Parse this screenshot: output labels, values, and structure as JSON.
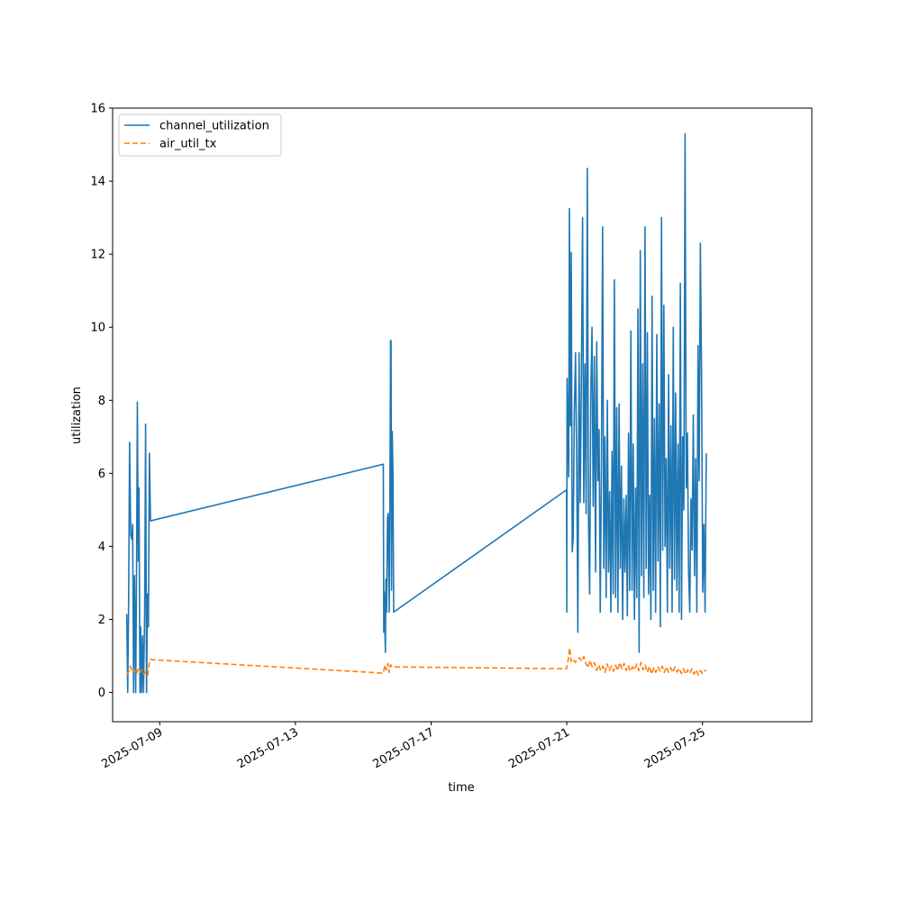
{
  "chart_data": {
    "type": "line",
    "title": "",
    "xlabel": "time",
    "ylabel": "utilization",
    "xlim": [
      "2025-07-07T14:40",
      "2025-07-28T05:20"
    ],
    "ylim": [
      -0.8,
      16
    ],
    "x_ticks": [
      "2025-07-09",
      "2025-07-13",
      "2025-07-17",
      "2025-07-21",
      "2025-07-25"
    ],
    "y_ticks": [
      0,
      2,
      4,
      6,
      8,
      10,
      12,
      14,
      16
    ],
    "grid": false,
    "legend": {
      "position": "upper-left"
    },
    "series": [
      {
        "name": "channel_utilization",
        "color": "#1f77b4",
        "dash": "solid",
        "points": [
          [
            "2025-07-08T00:40",
            2.15
          ],
          [
            "2025-07-08T01:20",
            0.0
          ],
          [
            "2025-07-08T02:00",
            2.5
          ],
          [
            "2025-07-08T02:40",
            6.85
          ],
          [
            "2025-07-08T03:30",
            4.3
          ],
          [
            "2025-07-08T04:10",
            4.2
          ],
          [
            "2025-07-08T04:50",
            4.6
          ],
          [
            "2025-07-08T05:30",
            0.0
          ],
          [
            "2025-07-08T06:10",
            3.2
          ],
          [
            "2025-07-08T07:00",
            0.0
          ],
          [
            "2025-07-08T07:40",
            3.8
          ],
          [
            "2025-07-08T08:10",
            7.95
          ],
          [
            "2025-07-08T08:50",
            3.6
          ],
          [
            "2025-07-08T09:20",
            5.6
          ],
          [
            "2025-07-08T10:00",
            0.0
          ],
          [
            "2025-07-08T10:30",
            1.8
          ],
          [
            "2025-07-08T11:10",
            0.0
          ],
          [
            "2025-07-08T11:50",
            1.55
          ],
          [
            "2025-07-08T12:30",
            0.0
          ],
          [
            "2025-07-08T13:20",
            2.2
          ],
          [
            "2025-07-08T14:00",
            7.35
          ],
          [
            "2025-07-08T14:40",
            0.0
          ],
          [
            "2025-07-08T15:20",
            2.7
          ],
          [
            "2025-07-08T16:00",
            1.8
          ],
          [
            "2025-07-08T16:40",
            6.55
          ],
          [
            "2025-07-08T17:30",
            4.7
          ],
          [
            "2025-07-15T14:10",
            6.25
          ],
          [
            "2025-07-15T14:30",
            1.65
          ],
          [
            "2025-07-15T14:50",
            2.75
          ],
          [
            "2025-07-15T15:20",
            1.65
          ],
          [
            "2025-07-15T15:40",
            1.1
          ],
          [
            "2025-07-15T16:00",
            3.1
          ],
          [
            "2025-07-15T16:30",
            2.2
          ],
          [
            "2025-07-15T17:10",
            4.8
          ],
          [
            "2025-07-15T17:40",
            4.9
          ],
          [
            "2025-07-15T18:20",
            2.2
          ],
          [
            "2025-07-15T18:50",
            5.2
          ],
          [
            "2025-07-15T19:20",
            9.65
          ],
          [
            "2025-07-15T19:40",
            9.6
          ],
          [
            "2025-07-15T20:00",
            2.8
          ],
          [
            "2025-07-15T20:30",
            7.15
          ],
          [
            "2025-07-15T21:00",
            6.0
          ],
          [
            "2025-07-15T21:30",
            2.2
          ],
          [
            "2025-07-20T23:50",
            5.55
          ],
          [
            "2025-07-21T00:00",
            2.2
          ],
          [
            "2025-07-21T00:10",
            8.6
          ],
          [
            "2025-07-21T01:20",
            5.9
          ],
          [
            "2025-07-21T01:50",
            13.25
          ],
          [
            "2025-07-21T02:30",
            7.3
          ],
          [
            "2025-07-21T03:10",
            12.05
          ],
          [
            "2025-07-21T03:50",
            3.85
          ],
          [
            "2025-07-21T04:30",
            4.2
          ],
          [
            "2025-07-21T05:20",
            7.7
          ],
          [
            "2025-07-21T06:10",
            9.3
          ],
          [
            "2025-07-21T07:00",
            6.4
          ],
          [
            "2025-07-21T07:50",
            1.65
          ],
          [
            "2025-07-21T08:40",
            9.3
          ],
          [
            "2025-07-21T09:30",
            5.2
          ],
          [
            "2025-07-21T10:20",
            8.7
          ],
          [
            "2025-07-21T11:10",
            13.0
          ],
          [
            "2025-07-21T12:00",
            5.2
          ],
          [
            "2025-07-21T12:50",
            9.0
          ],
          [
            "2025-07-21T13:40",
            4.9
          ],
          [
            "2025-07-21T14:30",
            14.35
          ],
          [
            "2025-07-21T15:20",
            4.8
          ],
          [
            "2025-07-21T16:10",
            2.7
          ],
          [
            "2025-07-21T17:00",
            8.2
          ],
          [
            "2025-07-21T17:50",
            10.0
          ],
          [
            "2025-07-21T18:40",
            5.1
          ],
          [
            "2025-07-21T19:30",
            9.2
          ],
          [
            "2025-07-21T20:20",
            3.3
          ],
          [
            "2025-07-21T21:10",
            9.6
          ],
          [
            "2025-07-21T22:00",
            5.8
          ],
          [
            "2025-07-21T22:50",
            7.2
          ],
          [
            "2025-07-21T23:40",
            2.2
          ],
          [
            "2025-07-22T00:30",
            6.2
          ],
          [
            "2025-07-22T01:20",
            12.75
          ],
          [
            "2025-07-22T02:10",
            3.4
          ],
          [
            "2025-07-22T03:00",
            7.0
          ],
          [
            "2025-07-22T03:50",
            2.6
          ],
          [
            "2025-07-22T04:40",
            8.0
          ],
          [
            "2025-07-22T05:30",
            3.3
          ],
          [
            "2025-07-22T06:20",
            5.5
          ],
          [
            "2025-07-22T07:10",
            2.2
          ],
          [
            "2025-07-22T08:00",
            6.6
          ],
          [
            "2025-07-22T08:50",
            2.7
          ],
          [
            "2025-07-22T09:40",
            11.3
          ],
          [
            "2025-07-22T10:30",
            2.6
          ],
          [
            "2025-07-22T11:20",
            7.8
          ],
          [
            "2025-07-22T12:10",
            2.2
          ],
          [
            "2025-07-22T13:00",
            7.9
          ],
          [
            "2025-07-22T13:50",
            3.4
          ],
          [
            "2025-07-22T14:40",
            6.2
          ],
          [
            "2025-07-22T15:30",
            2.0
          ],
          [
            "2025-07-22T16:20",
            5.3
          ],
          [
            "2025-07-22T17:10",
            3.3
          ],
          [
            "2025-07-22T18:00",
            5.4
          ],
          [
            "2025-07-22T18:50",
            2.1
          ],
          [
            "2025-07-22T19:40",
            7.1
          ],
          [
            "2025-07-22T20:30",
            2.8
          ],
          [
            "2025-07-22T21:20",
            9.9
          ],
          [
            "2025-07-22T22:10",
            2.8
          ],
          [
            "2025-07-22T23:00",
            6.8
          ],
          [
            "2025-07-22T23:50",
            2.0
          ],
          [
            "2025-07-23T00:40",
            5.6
          ],
          [
            "2025-07-23T01:30",
            2.6
          ],
          [
            "2025-07-23T02:20",
            10.5
          ],
          [
            "2025-07-23T03:10",
            1.1
          ],
          [
            "2025-07-23T04:00",
            12.1
          ],
          [
            "2025-07-23T04:50",
            3.2
          ],
          [
            "2025-07-23T05:40",
            9.0
          ],
          [
            "2025-07-23T06:30",
            2.6
          ],
          [
            "2025-07-23T07:20",
            12.75
          ],
          [
            "2025-07-23T08:10",
            3.4
          ],
          [
            "2025-07-23T09:00",
            9.85
          ],
          [
            "2025-07-23T09:50",
            2.7
          ],
          [
            "2025-07-23T10:40",
            5.4
          ],
          [
            "2025-07-23T11:30",
            2.0
          ],
          [
            "2025-07-23T12:20",
            10.85
          ],
          [
            "2025-07-23T13:10",
            2.8
          ],
          [
            "2025-07-23T14:00",
            7.5
          ],
          [
            "2025-07-23T14:50",
            2.2
          ],
          [
            "2025-07-23T15:40",
            9.8
          ],
          [
            "2025-07-23T16:30",
            3.6
          ],
          [
            "2025-07-23T17:20",
            7.9
          ],
          [
            "2025-07-23T18:10",
            1.8
          ],
          [
            "2025-07-23T19:00",
            13.0
          ],
          [
            "2025-07-23T19:50",
            3.9
          ],
          [
            "2025-07-23T20:40",
            10.6
          ],
          [
            "2025-07-23T21:30",
            4.0
          ],
          [
            "2025-07-23T22:20",
            6.4
          ],
          [
            "2025-07-23T23:10",
            2.2
          ],
          [
            "2025-07-24T00:00",
            8.7
          ],
          [
            "2025-07-24T00:50",
            3.4
          ],
          [
            "2025-07-24T01:40",
            7.3
          ],
          [
            "2025-07-24T02:30",
            2.2
          ],
          [
            "2025-07-24T03:20",
            10.0
          ],
          [
            "2025-07-24T04:10",
            3.1
          ],
          [
            "2025-07-24T05:00",
            8.2
          ],
          [
            "2025-07-24T05:50",
            2.8
          ],
          [
            "2025-07-24T06:40",
            6.8
          ],
          [
            "2025-07-24T07:30",
            2.2
          ],
          [
            "2025-07-24T08:20",
            11.2
          ],
          [
            "2025-07-24T09:10",
            2.0
          ],
          [
            "2025-07-24T10:00",
            7.0
          ],
          [
            "2025-07-24T10:50",
            5.0
          ],
          [
            "2025-07-24T11:40",
            15.3
          ],
          [
            "2025-07-24T12:30",
            5.6
          ],
          [
            "2025-07-24T13:20",
            7.1
          ],
          [
            "2025-07-24T14:10",
            3.3
          ],
          [
            "2025-07-24T15:00",
            2.2
          ],
          [
            "2025-07-24T15:50",
            5.3
          ],
          [
            "2025-07-24T16:40",
            3.9
          ],
          [
            "2025-07-24T17:30",
            7.6
          ],
          [
            "2025-07-24T18:20",
            3.2
          ],
          [
            "2025-07-24T19:10",
            6.4
          ],
          [
            "2025-07-24T20:00",
            2.2
          ],
          [
            "2025-07-24T20:50",
            9.5
          ],
          [
            "2025-07-24T21:40",
            5.8
          ],
          [
            "2025-07-24T22:30",
            12.3
          ],
          [
            "2025-07-24T23:20",
            8.7
          ],
          [
            "2025-07-25T00:10",
            2.75
          ],
          [
            "2025-07-25T01:00",
            4.6
          ],
          [
            "2025-07-25T01:50",
            2.2
          ],
          [
            "2025-07-25T02:40",
            6.55
          ]
        ]
      },
      {
        "name": "air_util_tx",
        "color": "#ff7f0e",
        "dash": "dashed",
        "points": [
          [
            "2025-07-08T00:40",
            0.48
          ],
          [
            "2025-07-08T02:20",
            0.6
          ],
          [
            "2025-07-08T03:10",
            0.72
          ],
          [
            "2025-07-08T04:40",
            0.55
          ],
          [
            "2025-07-08T06:10",
            0.62
          ],
          [
            "2025-07-08T07:30",
            0.5
          ],
          [
            "2025-07-08T08:50",
            0.65
          ],
          [
            "2025-07-08T10:10",
            0.55
          ],
          [
            "2025-07-08T11:30",
            0.62
          ],
          [
            "2025-07-08T12:50",
            0.5
          ],
          [
            "2025-07-08T14:10",
            0.58
          ],
          [
            "2025-07-08T15:30",
            0.48
          ],
          [
            "2025-07-08T16:40",
            0.82
          ],
          [
            "2025-07-08T17:30",
            0.9
          ],
          [
            "2025-07-15T14:10",
            0.53
          ],
          [
            "2025-07-15T15:20",
            0.75
          ],
          [
            "2025-07-15T16:20",
            0.62
          ],
          [
            "2025-07-15T17:20",
            0.8
          ],
          [
            "2025-07-15T18:20",
            0.55
          ],
          [
            "2025-07-15T19:20",
            0.76
          ],
          [
            "2025-07-15T20:20",
            0.7
          ],
          [
            "2025-07-15T21:30",
            0.7
          ],
          [
            "2025-07-20T23:50",
            0.65
          ],
          [
            "2025-07-21T01:00",
            0.9
          ],
          [
            "2025-07-21T02:00",
            1.22
          ],
          [
            "2025-07-21T03:00",
            0.85
          ],
          [
            "2025-07-21T04:30",
            0.92
          ],
          [
            "2025-07-21T06:00",
            0.82
          ],
          [
            "2025-07-21T07:30",
            0.9
          ],
          [
            "2025-07-21T09:00",
            0.95
          ],
          [
            "2025-07-21T10:30",
            0.85
          ],
          [
            "2025-07-21T12:00",
            0.98
          ],
          [
            "2025-07-21T13:30",
            0.8
          ],
          [
            "2025-07-21T15:00",
            0.68
          ],
          [
            "2025-07-21T16:30",
            0.88
          ],
          [
            "2025-07-21T18:00",
            0.7
          ],
          [
            "2025-07-21T19:30",
            0.82
          ],
          [
            "2025-07-21T21:00",
            0.6
          ],
          [
            "2025-07-21T22:30",
            0.75
          ],
          [
            "2025-07-22T00:00",
            0.6
          ],
          [
            "2025-07-22T01:30",
            0.72
          ],
          [
            "2025-07-22T03:00",
            0.55
          ],
          [
            "2025-07-22T04:30",
            0.78
          ],
          [
            "2025-07-22T06:00",
            0.6
          ],
          [
            "2025-07-22T07:30",
            0.72
          ],
          [
            "2025-07-22T09:00",
            0.58
          ],
          [
            "2025-07-22T10:30",
            0.75
          ],
          [
            "2025-07-22T12:00",
            0.6
          ],
          [
            "2025-07-22T13:30",
            0.82
          ],
          [
            "2025-07-22T15:00",
            0.65
          ],
          [
            "2025-07-22T16:30",
            0.8
          ],
          [
            "2025-07-22T18:00",
            0.6
          ],
          [
            "2025-07-22T19:30",
            0.74
          ],
          [
            "2025-07-22T21:00",
            0.58
          ],
          [
            "2025-07-22T22:30",
            0.7
          ],
          [
            "2025-07-23T00:00",
            0.62
          ],
          [
            "2025-07-23T01:30",
            0.78
          ],
          [
            "2025-07-23T03:00",
            0.6
          ],
          [
            "2025-07-23T04:30",
            0.82
          ],
          [
            "2025-07-23T06:00",
            0.62
          ],
          [
            "2025-07-23T07:30",
            0.75
          ],
          [
            "2025-07-23T09:00",
            0.55
          ],
          [
            "2025-07-23T10:30",
            0.72
          ],
          [
            "2025-07-23T12:00",
            0.5
          ],
          [
            "2025-07-23T13:30",
            0.68
          ],
          [
            "2025-07-23T15:00",
            0.55
          ],
          [
            "2025-07-23T16:30",
            0.7
          ],
          [
            "2025-07-23T18:00",
            0.58
          ],
          [
            "2025-07-23T19:30",
            0.72
          ],
          [
            "2025-07-23T21:00",
            0.55
          ],
          [
            "2025-07-23T22:30",
            0.7
          ],
          [
            "2025-07-24T00:00",
            0.55
          ],
          [
            "2025-07-24T01:30",
            0.68
          ],
          [
            "2025-07-24T03:00",
            0.55
          ],
          [
            "2025-07-24T04:30",
            0.7
          ],
          [
            "2025-07-24T06:00",
            0.56
          ],
          [
            "2025-07-24T07:30",
            0.66
          ],
          [
            "2025-07-24T09:00",
            0.52
          ],
          [
            "2025-07-24T10:30",
            0.65
          ],
          [
            "2025-07-24T12:00",
            0.5
          ],
          [
            "2025-07-24T13:30",
            0.62
          ],
          [
            "2025-07-24T15:00",
            0.52
          ],
          [
            "2025-07-24T16:30",
            0.65
          ],
          [
            "2025-07-24T18:00",
            0.5
          ],
          [
            "2025-07-24T19:30",
            0.62
          ],
          [
            "2025-07-24T21:00",
            0.48
          ],
          [
            "2025-07-24T22:30",
            0.6
          ],
          [
            "2025-07-25T00:00",
            0.52
          ],
          [
            "2025-07-25T01:30",
            0.6
          ],
          [
            "2025-07-25T02:40",
            0.58
          ]
        ]
      }
    ]
  }
}
